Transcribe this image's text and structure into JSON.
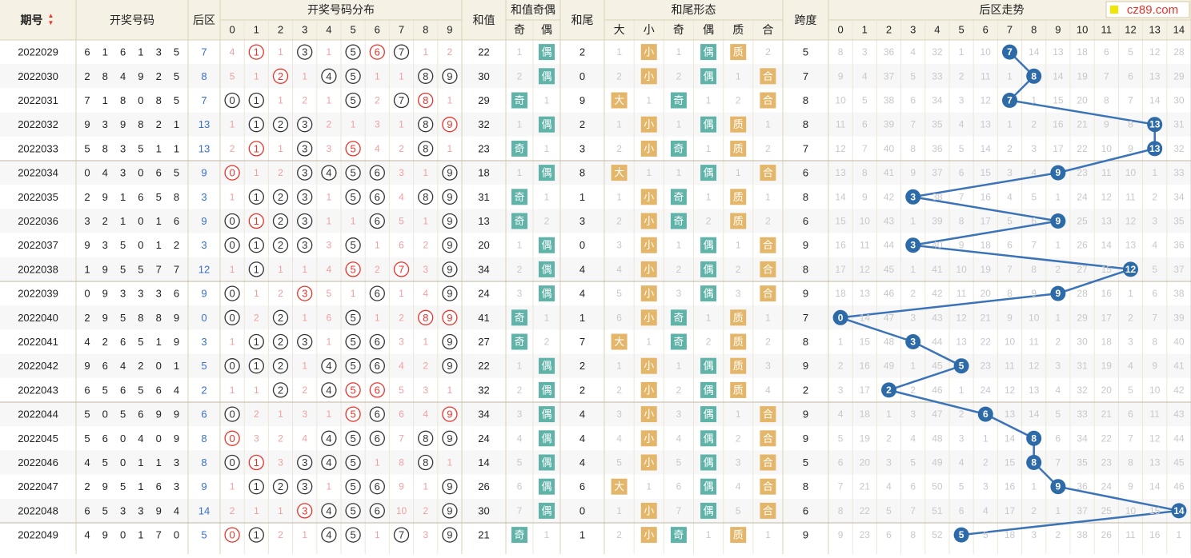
{
  "site": {
    "watermark": "cz89.com"
  },
  "headers": {
    "period": "期号",
    "draw_numbers": "开奖号码",
    "back_zone": "后区",
    "distribution": "开奖号码分布",
    "digits": [
      "0",
      "1",
      "2",
      "3",
      "4",
      "5",
      "6",
      "7",
      "8",
      "9"
    ],
    "sum": "和值",
    "sum_parity": "和值奇偶",
    "odd": "奇",
    "even": "偶",
    "tail": "和尾",
    "tail_form": "和尾形态",
    "big": "大",
    "small": "小",
    "prime": "质",
    "composite": "合",
    "span": "跨度",
    "back_trend": "后区走势",
    "back_values": [
      "0",
      "1",
      "2",
      "3",
      "4",
      "5",
      "6",
      "7",
      "8",
      "9",
      "10",
      "11",
      "12",
      "13",
      "14"
    ]
  },
  "colors": {
    "header_bg": "#f5f1e4",
    "row_bg_odd": "#ffffff",
    "row_bg_even": "#f7f7f7",
    "red": "#e8332a",
    "teal_badge": "#5fb3a9",
    "orange_badge": "#e4b66a",
    "trend_line": "#3b73b9",
    "trend_ball": "#2d6aa8",
    "miss_text": "#c8c8c8",
    "miss_red_text": "#f0a0a0",
    "back_blue": "#3a6fc4"
  },
  "chart_data": {
    "type": "table",
    "title": "后区走势",
    "rows": [
      {
        "period": "2022029",
        "draw": [
          "6",
          "1",
          "6",
          "1",
          "3",
          "5"
        ],
        "back": "7",
        "dist": [
          "4",
          "①",
          "1",
          "③",
          "1",
          "⑤",
          "⑥",
          "⑦",
          "1",
          "2"
        ],
        "sum": "22",
        "odd": "1",
        "even": "偶",
        "tail": "2",
        "big": "1",
        "small": "小",
        "tail_odd": "1",
        "tail_even": "偶",
        "prime": "质",
        "comp": "2",
        "span": "5",
        "trend": [
          "8",
          "3",
          "36",
          "4",
          "32",
          "1",
          "10",
          "7",
          "14",
          "13",
          "18",
          "6",
          "5",
          "12",
          "28"
        ]
      },
      {
        "period": "2022030",
        "draw": [
          "2",
          "8",
          "4",
          "9",
          "2",
          "5"
        ],
        "back": "8",
        "dist": [
          "5",
          "1",
          "②",
          "1",
          "④",
          "⑤",
          "1",
          "1",
          "⑧",
          "⑨"
        ],
        "sum": "30",
        "odd": "2",
        "even": "偶",
        "tail": "0",
        "big": "2",
        "small": "小",
        "tail_odd": "2",
        "tail_even": "偶",
        "prime": "1",
        "comp": "合",
        "span": "7",
        "trend": [
          "9",
          "4",
          "37",
          "5",
          "33",
          "2",
          "11",
          "1",
          "8",
          "14",
          "19",
          "7",
          "6",
          "13",
          "29"
        ]
      },
      {
        "period": "2022031",
        "draw": [
          "7",
          "1",
          "8",
          "0",
          "8",
          "5"
        ],
        "back": "7",
        "dist": [
          "⓪",
          "①",
          "1",
          "2",
          "1",
          "⑤",
          "2",
          "⑦",
          "⑧",
          "1"
        ],
        "sum": "29",
        "odd": "奇",
        "even": "1",
        "tail": "9",
        "big": "大",
        "small": "1",
        "tail_odd": "奇",
        "tail_even": "1",
        "prime": "2",
        "comp": "合",
        "span": "8",
        "trend": [
          "10",
          "5",
          "38",
          "6",
          "34",
          "3",
          "12",
          "7",
          "1",
          "15",
          "20",
          "8",
          "7",
          "14",
          "30"
        ]
      },
      {
        "period": "2022032",
        "draw": [
          "9",
          "3",
          "9",
          "8",
          "2",
          "1"
        ],
        "back": "13",
        "dist": [
          "1",
          "①",
          "②",
          "③",
          "2",
          "1",
          "3",
          "1",
          "⑧",
          "⑨"
        ],
        "sum": "32",
        "odd": "1",
        "even": "偶",
        "tail": "2",
        "big": "1",
        "small": "小",
        "tail_odd": "1",
        "tail_even": "偶",
        "prime": "质",
        "comp": "1",
        "span": "8",
        "trend": [
          "11",
          "6",
          "39",
          "7",
          "35",
          "4",
          "13",
          "1",
          "2",
          "16",
          "21",
          "9",
          "8",
          "13",
          "31"
        ]
      },
      {
        "period": "2022033",
        "draw": [
          "5",
          "8",
          "3",
          "5",
          "1",
          "1"
        ],
        "back": "13",
        "dist": [
          "2",
          "①",
          "1",
          "③",
          "3",
          "⑤",
          "4",
          "2",
          "⑧",
          "1"
        ],
        "sum": "23",
        "odd": "奇",
        "even": "1",
        "tail": "3",
        "big": "2",
        "small": "小",
        "tail_odd": "奇",
        "tail_even": "1",
        "prime": "质",
        "comp": "2",
        "span": "7",
        "trend": [
          "12",
          "7",
          "40",
          "8",
          "36",
          "5",
          "14",
          "2",
          "3",
          "17",
          "22",
          "10",
          "9",
          "13",
          "32"
        ]
      },
      {
        "period": "2022034",
        "draw": [
          "0",
          "4",
          "3",
          "0",
          "6",
          "5"
        ],
        "back": "9",
        "dist": [
          "⓪",
          "1",
          "2",
          "③",
          "④",
          "⑤",
          "⑥",
          "3",
          "1",
          "⑨"
        ],
        "sum": "18",
        "odd": "1",
        "even": "偶",
        "tail": "8",
        "big": "大",
        "small": "1",
        "tail_odd": "1",
        "tail_even": "偶",
        "prime": "1",
        "comp": "合",
        "span": "6",
        "trend": [
          "13",
          "8",
          "41",
          "9",
          "37",
          "6",
          "15",
          "3",
          "4",
          "9",
          "23",
          "11",
          "10",
          "1",
          "33"
        ]
      },
      {
        "period": "2022035",
        "draw": [
          "2",
          "9",
          "1",
          "6",
          "5",
          "8"
        ],
        "back": "3",
        "dist": [
          "1",
          "①",
          "②",
          "③",
          "1",
          "⑤",
          "⑥",
          "4",
          "⑧",
          "⑨"
        ],
        "sum": "31",
        "odd": "奇",
        "even": "1",
        "tail": "1",
        "big": "1",
        "small": "小",
        "tail_odd": "奇",
        "tail_even": "1",
        "prime": "质",
        "comp": "1",
        "span": "8",
        "trend": [
          "14",
          "9",
          "42",
          "3",
          "38",
          "7",
          "16",
          "4",
          "5",
          "1",
          "24",
          "12",
          "11",
          "2",
          "34"
        ]
      },
      {
        "period": "2022036",
        "draw": [
          "3",
          "2",
          "1",
          "0",
          "1",
          "6"
        ],
        "back": "9",
        "dist": [
          "⓪",
          "①",
          "②",
          "③",
          "1",
          "1",
          "⑥",
          "5",
          "1",
          "⑨"
        ],
        "sum": "13",
        "odd": "奇",
        "even": "2",
        "tail": "3",
        "big": "2",
        "small": "小",
        "tail_odd": "奇",
        "tail_even": "2",
        "prime": "质",
        "comp": "2",
        "span": "6",
        "trend": [
          "15",
          "10",
          "43",
          "1",
          "39",
          "8",
          "17",
          "5",
          "6",
          "9",
          "25",
          "13",
          "12",
          "3",
          "35"
        ]
      },
      {
        "period": "2022037",
        "draw": [
          "9",
          "3",
          "5",
          "0",
          "1",
          "2"
        ],
        "back": "3",
        "dist": [
          "⓪",
          "①",
          "②",
          "③",
          "3",
          "⑤",
          "1",
          "6",
          "2",
          "⑨"
        ],
        "sum": "20",
        "odd": "1",
        "even": "偶",
        "tail": "0",
        "big": "3",
        "small": "小",
        "tail_odd": "1",
        "tail_even": "偶",
        "prime": "1",
        "comp": "合",
        "span": "9",
        "trend": [
          "16",
          "11",
          "44",
          "3",
          "40",
          "9",
          "18",
          "6",
          "7",
          "1",
          "26",
          "14",
          "13",
          "4",
          "36"
        ]
      },
      {
        "period": "2022038",
        "draw": [
          "1",
          "9",
          "5",
          "5",
          "7",
          "7"
        ],
        "back": "12",
        "dist": [
          "1",
          "①",
          "1",
          "1",
          "4",
          "⑤",
          "2",
          "⑦",
          "3",
          "⑨"
        ],
        "sum": "34",
        "odd": "2",
        "even": "偶",
        "tail": "4",
        "big": "4",
        "small": "小",
        "tail_odd": "2",
        "tail_even": "偶",
        "prime": "2",
        "comp": "合",
        "span": "8",
        "trend": [
          "17",
          "12",
          "45",
          "1",
          "41",
          "10",
          "19",
          "7",
          "8",
          "2",
          "27",
          "15",
          "12",
          "5",
          "37"
        ]
      },
      {
        "period": "2022039",
        "draw": [
          "0",
          "9",
          "3",
          "3",
          "3",
          "6"
        ],
        "back": "9",
        "dist": [
          "⓪",
          "1",
          "2",
          "③",
          "5",
          "1",
          "⑥",
          "1",
          "4",
          "⑨"
        ],
        "sum": "24",
        "odd": "3",
        "even": "偶",
        "tail": "4",
        "big": "5",
        "small": "小",
        "tail_odd": "3",
        "tail_even": "偶",
        "prime": "3",
        "comp": "合",
        "span": "9",
        "trend": [
          "18",
          "13",
          "46",
          "2",
          "42",
          "11",
          "20",
          "8",
          "9",
          "9",
          "28",
          "16",
          "1",
          "6",
          "38"
        ]
      },
      {
        "period": "2022040",
        "draw": [
          "2",
          "9",
          "5",
          "8",
          "8",
          "9"
        ],
        "back": "0",
        "dist": [
          "⓪",
          "2",
          "②",
          "1",
          "6",
          "⑤",
          "1",
          "2",
          "⑧",
          "⑨"
        ],
        "sum": "41",
        "odd": "奇",
        "even": "1",
        "tail": "1",
        "big": "6",
        "small": "小",
        "tail_odd": "奇",
        "tail_even": "1",
        "prime": "质",
        "comp": "1",
        "span": "7",
        "trend": [
          "0",
          "14",
          "47",
          "3",
          "43",
          "12",
          "21",
          "9",
          "10",
          "1",
          "29",
          "17",
          "2",
          "7",
          "39"
        ]
      },
      {
        "period": "2022041",
        "draw": [
          "4",
          "2",
          "6",
          "5",
          "1",
          "9"
        ],
        "back": "3",
        "dist": [
          "1",
          "①",
          "②",
          "③",
          "1",
          "⑤",
          "⑥",
          "3",
          "1",
          "⑨"
        ],
        "sum": "27",
        "odd": "奇",
        "even": "2",
        "tail": "7",
        "big": "大",
        "small": "1",
        "tail_odd": "奇",
        "tail_even": "2",
        "prime": "质",
        "comp": "2",
        "span": "8",
        "trend": [
          "1",
          "15",
          "48",
          "3",
          "44",
          "13",
          "22",
          "10",
          "11",
          "2",
          "30",
          "18",
          "3",
          "8",
          "40"
        ]
      },
      {
        "period": "2022042",
        "draw": [
          "9",
          "6",
          "4",
          "2",
          "0",
          "1"
        ],
        "back": "5",
        "dist": [
          "⓪",
          "①",
          "②",
          "1",
          "④",
          "⑤",
          "⑥",
          "4",
          "2",
          "⑨"
        ],
        "sum": "22",
        "odd": "1",
        "even": "偶",
        "tail": "2",
        "big": "1",
        "small": "小",
        "tail_odd": "1",
        "tail_even": "偶",
        "prime": "质",
        "comp": "3",
        "span": "9",
        "trend": [
          "2",
          "16",
          "49",
          "1",
          "45",
          "5",
          "23",
          "11",
          "12",
          "3",
          "31",
          "19",
          "4",
          "9",
          "41"
        ]
      },
      {
        "period": "2022043",
        "draw": [
          "6",
          "5",
          "6",
          "5",
          "6",
          "4"
        ],
        "back": "2",
        "dist": [
          "1",
          "1",
          "②",
          "2",
          "④",
          "⑤",
          "⑥",
          "5",
          "3",
          "1"
        ],
        "sum": "32",
        "odd": "2",
        "even": "偶",
        "tail": "2",
        "big": "2",
        "small": "小",
        "tail_odd": "2",
        "tail_even": "偶",
        "prime": "质",
        "comp": "4",
        "span": "2",
        "trend": [
          "3",
          "17",
          "2",
          "2",
          "46",
          "1",
          "24",
          "12",
          "13",
          "4",
          "32",
          "20",
          "5",
          "10",
          "42"
        ]
      },
      {
        "period": "2022044",
        "draw": [
          "5",
          "0",
          "5",
          "6",
          "9",
          "9"
        ],
        "back": "6",
        "dist": [
          "⓪",
          "2",
          "1",
          "3",
          "1",
          "⑤",
          "⑥",
          "6",
          "4",
          "⑨"
        ],
        "sum": "34",
        "odd": "3",
        "even": "偶",
        "tail": "4",
        "big": "3",
        "small": "小",
        "tail_odd": "3",
        "tail_even": "偶",
        "prime": "1",
        "comp": "合",
        "span": "9",
        "trend": [
          "4",
          "18",
          "1",
          "3",
          "47",
          "2",
          "6",
          "13",
          "14",
          "5",
          "33",
          "21",
          "6",
          "11",
          "43"
        ]
      },
      {
        "period": "2022045",
        "draw": [
          "5",
          "6",
          "0",
          "4",
          "0",
          "9"
        ],
        "back": "8",
        "dist": [
          "⓪",
          "3",
          "2",
          "4",
          "④",
          "⑤",
          "⑥",
          "7",
          "⑧",
          "⑨"
        ],
        "sum": "24",
        "odd": "4",
        "even": "偶",
        "tail": "4",
        "big": "4",
        "small": "小",
        "tail_odd": "4",
        "tail_even": "偶",
        "prime": "2",
        "comp": "合",
        "span": "9",
        "trend": [
          "5",
          "19",
          "2",
          "4",
          "48",
          "3",
          "1",
          "14",
          "8",
          "6",
          "34",
          "22",
          "7",
          "12",
          "44"
        ]
      },
      {
        "period": "2022046",
        "draw": [
          "4",
          "5",
          "0",
          "1",
          "1",
          "3"
        ],
        "back": "8",
        "dist": [
          "⓪",
          "①",
          "3",
          "③",
          "④",
          "⑤",
          "1",
          "8",
          "⑧",
          "1"
        ],
        "sum": "14",
        "odd": "5",
        "even": "偶",
        "tail": "4",
        "big": "5",
        "small": "小",
        "tail_odd": "5",
        "tail_even": "偶",
        "prime": "3",
        "comp": "合",
        "span": "5",
        "trend": [
          "6",
          "20",
          "3",
          "5",
          "49",
          "4",
          "2",
          "15",
          "8",
          "7",
          "35",
          "23",
          "8",
          "13",
          "45"
        ]
      },
      {
        "period": "2022047",
        "draw": [
          "2",
          "9",
          "5",
          "1",
          "6",
          "3"
        ],
        "back": "9",
        "dist": [
          "1",
          "①",
          "②",
          "③",
          "1",
          "⑤",
          "⑥",
          "9",
          "1",
          "⑨"
        ],
        "sum": "26",
        "odd": "6",
        "even": "偶",
        "tail": "6",
        "big": "大",
        "small": "1",
        "tail_odd": "6",
        "tail_even": "偶",
        "prime": "4",
        "comp": "合",
        "span": "8",
        "trend": [
          "7",
          "21",
          "4",
          "6",
          "50",
          "5",
          "3",
          "16",
          "1",
          "9",
          "36",
          "24",
          "9",
          "14",
          "46"
        ]
      },
      {
        "period": "2022048",
        "draw": [
          "6",
          "5",
          "3",
          "3",
          "9",
          "4"
        ],
        "back": "14",
        "dist": [
          "2",
          "1",
          "1",
          "③",
          "④",
          "⑤",
          "⑥",
          "10",
          "2",
          "⑨"
        ],
        "sum": "30",
        "odd": "7",
        "even": "偶",
        "tail": "0",
        "big": "1",
        "small": "小",
        "tail_odd": "7",
        "tail_even": "偶",
        "prime": "5",
        "comp": "合",
        "span": "6",
        "trend": [
          "8",
          "22",
          "5",
          "7",
          "51",
          "6",
          "4",
          "17",
          "2",
          "1",
          "37",
          "25",
          "10",
          "15",
          "14"
        ]
      },
      {
        "period": "2022049",
        "draw": [
          "4",
          "9",
          "0",
          "1",
          "7",
          "0"
        ],
        "back": "5",
        "dist": [
          "⓪",
          "①",
          "2",
          "1",
          "④",
          "⑤",
          "1",
          "⑦",
          "3",
          "⑨"
        ],
        "sum": "21",
        "odd": "奇",
        "even": "1",
        "tail": "1",
        "big": "2",
        "small": "小",
        "tail_odd": "奇",
        "tail_even": "1",
        "prime": "质",
        "comp": "1",
        "span": "9",
        "trend": [
          "9",
          "23",
          "6",
          "8",
          "52",
          "5",
          "5",
          "18",
          "3",
          "2",
          "38",
          "26",
          "11",
          "16",
          "1"
        ]
      }
    ],
    "trend_series": {
      "name": "后区",
      "values": [
        7,
        8,
        7,
        13,
        13,
        9,
        3,
        9,
        3,
        12,
        9,
        0,
        3,
        5,
        2,
        6,
        8,
        8,
        9,
        14,
        5
      ]
    }
  }
}
